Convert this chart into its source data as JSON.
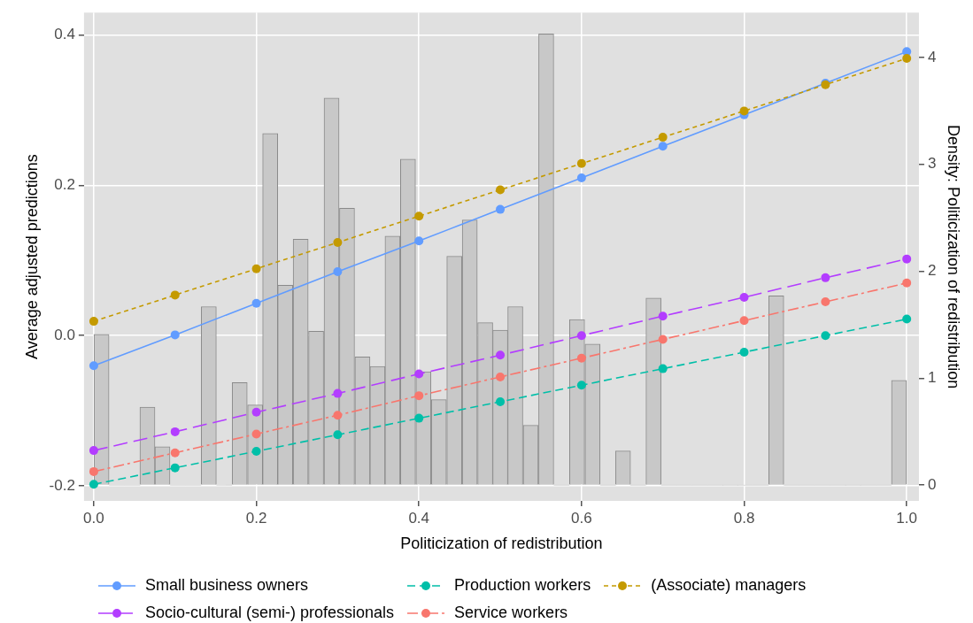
{
  "chart_data": {
    "type": "line",
    "xlabel": "Politicization of redistribution",
    "ylabel": "Average adjusted predictions",
    "y2label": "Density: Politicization of redistribution",
    "x": [
      0,
      0.1,
      0.2,
      0.3,
      0.4,
      0.5,
      0.6,
      0.7,
      0.8,
      0.9,
      1
    ],
    "series": [
      {
        "name": "Small business owners",
        "color": "#619cff",
        "line_style": "solid",
        "values": [
          -0.04,
          0.001,
          0.043,
          0.085,
          0.126,
          0.168,
          0.21,
          0.252,
          0.294,
          0.336,
          0.378
        ]
      },
      {
        "name": "Socio-cultural (semi-) professionals",
        "color": "#b33dff",
        "line_style": "longdash",
        "values": [
          -0.153,
          -0.128,
          -0.102,
          -0.077,
          -0.051,
          -0.026,
          0,
          0.026,
          0.051,
          0.077,
          0.102
        ]
      },
      {
        "name": "Production workers",
        "color": "#00bfa8",
        "line_style": "dashed",
        "values": [
          -0.198,
          -0.176,
          -0.154,
          -0.132,
          -0.11,
          -0.088,
          -0.066,
          -0.044,
          -0.022,
          0,
          0.022
        ]
      },
      {
        "name": "Service workers",
        "color": "#f8766d",
        "line_style": "dashdot",
        "values": [
          -0.181,
          -0.156,
          -0.131,
          -0.106,
          -0.08,
          -0.055,
          -0.03,
          -0.005,
          0.02,
          0.045,
          0.07
        ]
      },
      {
        "name": "(Associate) managers",
        "color": "#c49a00",
        "line_style": "dotted",
        "values": [
          0.019,
          0.054,
          0.089,
          0.124,
          0.159,
          0.194,
          0.229,
          0.264,
          0.299,
          0.334,
          0.369
        ]
      },
      {
        "type": "histogram",
        "axis": "y2",
        "color": "#c8c8c8",
        "bins": [
          0,
          0.019,
          0.038,
          0.057,
          0.075,
          0.094,
          0.113,
          0.132,
          0.151,
          0.17,
          0.189,
          0.208,
          0.226,
          0.245,
          0.264,
          0.283,
          0.302,
          0.321,
          0.34,
          0.358,
          0.377,
          0.396,
          0.415,
          0.434,
          0.453,
          0.472,
          0.491,
          0.509,
          0.528,
          0.547,
          0.566,
          0.585,
          0.604,
          0.623,
          0.642,
          0.66,
          0.679,
          0.698,
          0.717,
          0.736,
          0.755,
          0.774,
          0.792,
          0.811,
          0.83,
          0.849,
          0.868,
          0.887,
          0.906,
          0.925,
          0.943,
          0.962,
          0.981,
          1
        ],
        "values": [
          1.41,
          0,
          0,
          0.73,
          0.36,
          0,
          0,
          1.67,
          0,
          0.96,
          0.75,
          3.29,
          1.87,
          2.3,
          1.44,
          3.62,
          2.59,
          1.2,
          1.11,
          2.33,
          3.05,
          1.06,
          0.8,
          2.14,
          2.48,
          1.52,
          1.45,
          1.67,
          0.56,
          4.22,
          0,
          1.55,
          1.32,
          0,
          0.32,
          0,
          1.75,
          0,
          0,
          0,
          0,
          0,
          0,
          0,
          1.77,
          0,
          0,
          0,
          0,
          0,
          0,
          0,
          0.98
        ]
      }
    ],
    "xlim": [
      -0.012,
      1.015
    ],
    "ylim": [
      -0.22,
      0.43
    ],
    "y2lim": [
      -0.147,
      4.42
    ],
    "xticks": [
      {
        "value": 0,
        "label": "0.0"
      },
      0.2,
      0.4,
      0.6,
      0.8,
      {
        "value": 1,
        "label": "1.0"
      }
    ],
    "yticks": [
      -0.2,
      {
        "value": 0,
        "label": "0.0"
      },
      0.2,
      0.4
    ],
    "y2ticks": [
      0,
      1,
      2,
      3,
      4
    ],
    "grid": true,
    "legend": "bottom",
    "marker": "circle"
  }
}
